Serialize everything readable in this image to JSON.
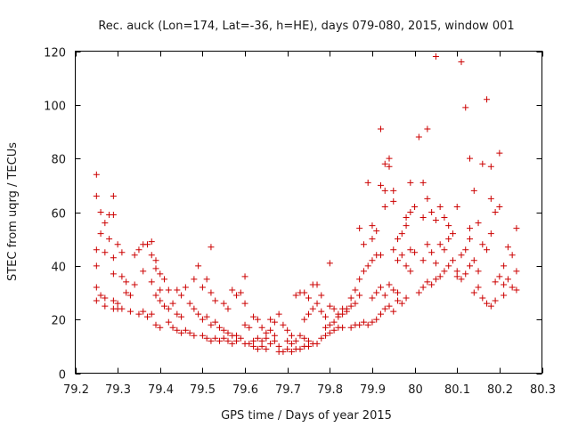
{
  "chart_data": {
    "type": "scatter",
    "title": "Rec. auck (Lon=174, Lat=-36, h=HE), days 079-080, 2015, window 001",
    "xlabel": "GPS time / Days of year 2015",
    "ylabel": "STEC from uqrg / TECUs",
    "xlim": [
      79.2,
      80.3
    ],
    "ylim": [
      0,
      120
    ],
    "xticks": [
      79.2,
      79.3,
      79.4,
      79.5,
      79.6,
      79.7,
      79.8,
      79.9,
      80,
      80.1,
      80.2,
      80.3
    ],
    "xtick_labels": [
      "79.2",
      "79.3",
      "79.4",
      "79.5",
      "79.6",
      "79.7",
      "79.8",
      "79.9",
      "80",
      "80.1",
      "80.2",
      "80.3"
    ],
    "yticks": [
      0,
      20,
      40,
      60,
      80,
      100,
      120
    ],
    "ytick_labels": [
      "0",
      "20",
      "40",
      "60",
      "80",
      "100",
      "120"
    ],
    "marker": "plus",
    "color": "#cc0000",
    "grid": false,
    "legend": "none",
    "series": [
      {
        "points": [
          [
            79.25,
            74
          ],
          [
            79.25,
            66
          ],
          [
            79.25,
            46
          ],
          [
            79.25,
            40
          ],
          [
            79.25,
            32
          ],
          [
            79.25,
            27
          ],
          [
            79.26,
            60
          ],
          [
            79.26,
            52
          ],
          [
            79.27,
            56
          ],
          [
            79.27,
            45
          ],
          [
            79.28,
            59
          ],
          [
            79.28,
            50
          ],
          [
            79.29,
            66
          ],
          [
            79.29,
            59
          ],
          [
            79.29,
            43
          ],
          [
            79.29,
            37
          ],
          [
            79.26,
            29
          ],
          [
            79.27,
            28
          ],
          [
            79.29,
            27
          ],
          [
            79.3,
            26
          ],
          [
            79.3,
            24
          ],
          [
            79.27,
            25
          ],
          [
            79.29,
            24
          ],
          [
            79.31,
            24
          ],
          [
            79.3,
            48
          ],
          [
            79.31,
            45
          ],
          [
            79.31,
            36
          ],
          [
            79.32,
            34
          ],
          [
            79.32,
            30
          ],
          [
            79.33,
            29
          ],
          [
            79.34,
            33
          ],
          [
            79.34,
            44
          ],
          [
            79.35,
            46
          ],
          [
            79.36,
            48
          ],
          [
            79.37,
            48
          ],
          [
            79.38,
            49
          ],
          [
            79.38,
            44
          ],
          [
            79.39,
            42
          ],
          [
            79.39,
            39
          ],
          [
            79.4,
            37
          ],
          [
            79.41,
            35
          ],
          [
            79.42,
            31
          ],
          [
            79.33,
            23
          ],
          [
            79.35,
            22
          ],
          [
            79.36,
            23
          ],
          [
            79.37,
            21
          ],
          [
            79.38,
            22
          ],
          [
            79.39,
            18
          ],
          [
            79.4,
            17
          ],
          [
            79.36,
            38
          ],
          [
            79.38,
            34
          ],
          [
            79.39,
            29
          ],
          [
            79.4,
            31
          ],
          [
            79.41,
            25
          ],
          [
            79.42,
            24
          ],
          [
            79.43,
            26
          ],
          [
            79.44,
            22
          ],
          [
            79.45,
            21
          ],
          [
            79.4,
            27
          ],
          [
            79.42,
            19
          ],
          [
            79.43,
            17
          ],
          [
            79.44,
            16
          ],
          [
            79.45,
            15
          ],
          [
            79.46,
            16
          ],
          [
            79.47,
            15
          ],
          [
            79.48,
            14
          ],
          [
            79.44,
            31
          ],
          [
            79.45,
            29
          ],
          [
            79.46,
            32
          ],
          [
            79.47,
            26
          ],
          [
            79.48,
            24
          ],
          [
            79.49,
            22
          ],
          [
            79.5,
            20
          ],
          [
            79.51,
            21
          ],
          [
            79.48,
            35
          ],
          [
            79.49,
            40
          ],
          [
            79.5,
            32
          ],
          [
            79.51,
            35
          ],
          [
            79.52,
            30
          ],
          [
            79.53,
            27
          ],
          [
            79.52,
            47
          ],
          [
            79.5,
            14
          ],
          [
            79.51,
            13
          ],
          [
            79.52,
            12
          ],
          [
            79.53,
            13
          ],
          [
            79.54,
            12
          ],
          [
            79.55,
            13
          ],
          [
            79.56,
            12
          ],
          [
            79.57,
            11
          ],
          [
            79.52,
            18
          ],
          [
            79.53,
            19
          ],
          [
            79.54,
            17
          ],
          [
            79.55,
            16
          ],
          [
            79.56,
            15
          ],
          [
            79.57,
            14
          ],
          [
            79.58,
            14
          ],
          [
            79.55,
            26
          ],
          [
            79.56,
            24
          ],
          [
            79.57,
            31
          ],
          [
            79.58,
            29
          ],
          [
            79.59,
            30
          ],
          [
            79.6,
            26
          ],
          [
            79.6,
            36
          ],
          [
            79.58,
            12
          ],
          [
            79.59,
            13
          ],
          [
            79.6,
            11
          ],
          [
            79.61,
            11
          ],
          [
            79.62,
            10
          ],
          [
            79.63,
            9
          ],
          [
            79.64,
            10
          ],
          [
            79.65,
            9
          ],
          [
            79.6,
            18
          ],
          [
            79.61,
            17
          ],
          [
            79.62,
            21
          ],
          [
            79.63,
            20
          ],
          [
            79.64,
            17
          ],
          [
            79.65,
            15
          ],
          [
            79.66,
            16
          ],
          [
            79.67,
            14
          ],
          [
            79.62,
            12
          ],
          [
            79.63,
            13
          ],
          [
            79.64,
            12
          ],
          [
            79.65,
            13
          ],
          [
            79.66,
            11
          ],
          [
            79.67,
            12
          ],
          [
            79.68,
            10
          ],
          [
            79.66,
            20
          ],
          [
            79.67,
            19
          ],
          [
            79.68,
            22
          ],
          [
            79.69,
            18
          ],
          [
            79.7,
            16
          ],
          [
            79.71,
            14
          ],
          [
            79.68,
            8
          ],
          [
            79.69,
            8
          ],
          [
            79.7,
            9
          ],
          [
            79.71,
            8
          ],
          [
            79.72,
            9
          ],
          [
            79.73,
            9
          ],
          [
            79.74,
            10
          ],
          [
            79.75,
            10
          ],
          [
            79.7,
            12
          ],
          [
            79.71,
            11
          ],
          [
            79.72,
            12
          ],
          [
            79.73,
            14
          ],
          [
            79.74,
            13
          ],
          [
            79.75,
            12
          ],
          [
            79.76,
            11
          ],
          [
            79.72,
            29
          ],
          [
            79.73,
            30
          ],
          [
            79.74,
            30
          ],
          [
            79.75,
            28
          ],
          [
            79.76,
            33
          ],
          [
            79.77,
            33
          ],
          [
            79.78,
            29
          ],
          [
            79.74,
            20
          ],
          [
            79.75,
            22
          ],
          [
            79.76,
            24
          ],
          [
            79.77,
            26
          ],
          [
            79.78,
            23
          ],
          [
            79.79,
            21
          ],
          [
            79.8,
            25
          ],
          [
            79.77,
            11
          ],
          [
            79.78,
            13
          ],
          [
            79.79,
            14
          ],
          [
            79.8,
            15
          ],
          [
            79.81,
            16
          ],
          [
            79.82,
            17
          ],
          [
            79.83,
            17
          ],
          [
            79.79,
            17
          ],
          [
            79.8,
            18
          ],
          [
            79.81,
            19
          ],
          [
            79.82,
            21
          ],
          [
            79.83,
            22
          ],
          [
            79.84,
            24
          ],
          [
            79.85,
            25
          ],
          [
            79.81,
            24
          ],
          [
            79.82,
            22
          ],
          [
            79.83,
            24
          ],
          [
            79.84,
            23
          ],
          [
            79.85,
            28
          ],
          [
            79.86,
            26
          ],
          [
            79.87,
            29
          ],
          [
            79.8,
            41
          ],
          [
            79.85,
            17
          ],
          [
            79.86,
            18
          ],
          [
            79.87,
            18
          ],
          [
            79.88,
            19
          ],
          [
            79.89,
            18
          ],
          [
            79.9,
            19
          ],
          [
            79.91,
            20
          ],
          [
            79.86,
            31
          ],
          [
            79.87,
            35
          ],
          [
            79.88,
            38
          ],
          [
            79.89,
            40
          ],
          [
            79.9,
            42
          ],
          [
            79.91,
            44
          ],
          [
            79.87,
            54
          ],
          [
            79.88,
            48
          ],
          [
            79.89,
            71
          ],
          [
            79.9,
            55
          ],
          [
            79.9,
            50
          ],
          [
            79.91,
            53
          ],
          [
            79.92,
            70
          ],
          [
            79.92,
            44
          ],
          [
            79.93,
            62
          ],
          [
            79.93,
            68
          ],
          [
            79.92,
            91
          ],
          [
            79.93,
            78
          ],
          [
            79.94,
            77
          ],
          [
            79.94,
            80
          ],
          [
            79.95,
            68
          ],
          [
            79.95,
            64
          ],
          [
            79.96,
            50
          ],
          [
            79.9,
            28
          ],
          [
            79.91,
            30
          ],
          [
            79.92,
            32
          ],
          [
            79.93,
            29
          ],
          [
            79.94,
            33
          ],
          [
            79.95,
            31
          ],
          [
            79.96,
            30
          ],
          [
            79.92,
            22
          ],
          [
            79.93,
            24
          ],
          [
            79.94,
            25
          ],
          [
            79.95,
            23
          ],
          [
            79.96,
            27
          ],
          [
            79.97,
            26
          ],
          [
            79.98,
            28
          ],
          [
            79.95,
            46
          ],
          [
            79.96,
            42
          ],
          [
            79.97,
            44
          ],
          [
            79.98,
            40
          ],
          [
            79.99,
            38
          ],
          [
            79.99,
            46
          ],
          [
            80,
            45
          ],
          [
            79.97,
            52
          ],
          [
            79.98,
            55
          ],
          [
            79.98,
            58
          ],
          [
            79.99,
            60
          ],
          [
            79.99,
            71
          ],
          [
            80,
            62
          ],
          [
            80.02,
            58
          ],
          [
            80.01,
            88
          ],
          [
            80.02,
            71
          ],
          [
            80.03,
            65
          ],
          [
            80.03,
            91
          ],
          [
            80.04,
            60
          ],
          [
            80.05,
            118
          ],
          [
            80.05,
            57
          ],
          [
            80.01,
            30
          ],
          [
            80.02,
            32
          ],
          [
            80.03,
            34
          ],
          [
            80.04,
            33
          ],
          [
            80.05,
            35
          ],
          [
            80.06,
            36
          ],
          [
            80.07,
            38
          ],
          [
            80.02,
            42
          ],
          [
            80.03,
            48
          ],
          [
            80.04,
            45
          ],
          [
            80.05,
            41
          ],
          [
            80.06,
            48
          ],
          [
            80.07,
            46
          ],
          [
            80.08,
            50
          ],
          [
            80.06,
            62
          ],
          [
            80.07,
            58
          ],
          [
            80.08,
            55
          ],
          [
            80.09,
            52
          ],
          [
            80.1,
            62
          ],
          [
            80.11,
            116
          ],
          [
            80.12,
            99
          ],
          [
            80.08,
            40
          ],
          [
            80.09,
            42
          ],
          [
            80.1,
            38
          ],
          [
            80.11,
            44
          ],
          [
            80.12,
            46
          ],
          [
            80.13,
            50
          ],
          [
            80.13,
            54
          ],
          [
            80.1,
            36
          ],
          [
            80.11,
            35
          ],
          [
            80.12,
            37
          ],
          [
            80.13,
            40
          ],
          [
            80.14,
            42
          ],
          [
            80.15,
            38
          ],
          [
            80.13,
            80
          ],
          [
            80.14,
            68
          ],
          [
            80.15,
            56
          ],
          [
            80.16,
            78
          ],
          [
            80.17,
            102
          ],
          [
            80.18,
            77
          ],
          [
            80.14,
            30
          ],
          [
            80.15,
            32
          ],
          [
            80.16,
            28
          ],
          [
            80.17,
            26
          ],
          [
            80.18,
            25
          ],
          [
            80.19,
            27
          ],
          [
            80.16,
            48
          ],
          [
            80.17,
            46
          ],
          [
            80.18,
            52
          ],
          [
            80.19,
            60
          ],
          [
            80.2,
            82
          ],
          [
            80.2,
            62
          ],
          [
            80.21,
            40
          ],
          [
            80.19,
            34
          ],
          [
            80.2,
            36
          ],
          [
            80.21,
            33
          ],
          [
            80.22,
            35
          ],
          [
            80.23,
            32
          ],
          [
            80.24,
            31
          ],
          [
            80.24,
            38
          ],
          [
            80.22,
            47
          ],
          [
            80.23,
            44
          ],
          [
            80.24,
            54
          ],
          [
            80.21,
            29
          ],
          [
            80.18,
            65
          ]
        ]
      }
    ]
  }
}
